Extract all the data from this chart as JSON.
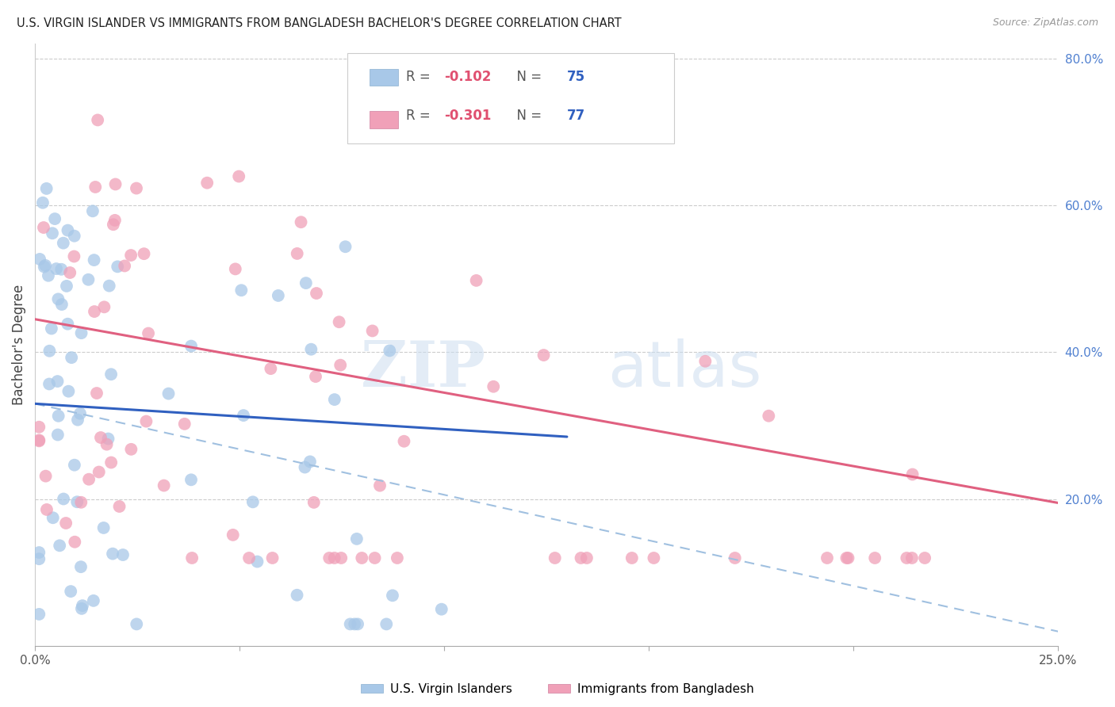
{
  "title": "U.S. VIRGIN ISLANDER VS IMMIGRANTS FROM BANGLADESH BACHELOR'S DEGREE CORRELATION CHART",
  "source": "Source: ZipAtlas.com",
  "ylabel": "Bachelor's Degree",
  "watermark_zip": "ZIP",
  "watermark_atlas": "atlas",
  "scatter_color_blue": "#a8c8e8",
  "scatter_color_pink": "#f0a0b8",
  "line_color_blue": "#3060c0",
  "line_color_pink": "#e06080",
  "dash_color": "#a0c0e0",
  "xlim": [
    0.0,
    0.25
  ],
  "ylim": [
    0.0,
    0.82
  ],
  "figsize": [
    14.06,
    8.92
  ],
  "dpi": 100,
  "legend_r_blue": "R = -0.102",
  "legend_n_blue": "N = 75",
  "legend_r_pink": "R = -0.301",
  "legend_n_pink": "N = 77",
  "legend_label_blue": "U.S. Virgin Islanders",
  "legend_label_pink": "Immigrants from Bangladesh",
  "blue_line_x0": 0.0,
  "blue_line_x1": 0.13,
  "blue_line_y0": 0.33,
  "blue_line_y1": 0.285,
  "pink_line_x0": 0.0,
  "pink_line_x1": 0.25,
  "pink_line_y0": 0.445,
  "pink_line_y1": 0.195,
  "dash_line_x0": 0.0,
  "dash_line_x1": 0.25,
  "dash_line_y0": 0.33,
  "dash_line_y1": 0.02
}
